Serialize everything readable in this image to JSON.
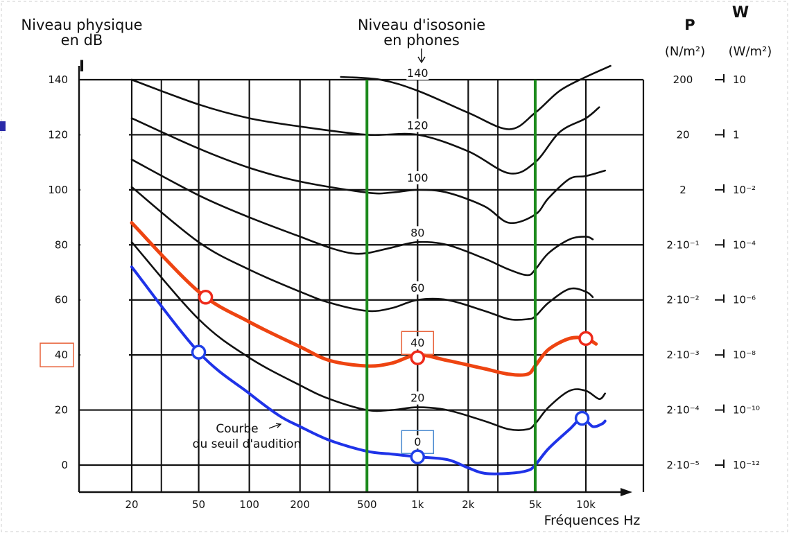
{
  "chart_data": {
    "type": "line",
    "title_left": [
      "Niveau physique",
      "en dB"
    ],
    "left_axis_symbol": "I",
    "title_center": [
      "Niveau d'isosonie",
      "en phones"
    ],
    "p_header": [
      "P",
      "(N/m²)"
    ],
    "w_header": [
      "W",
      "(W/m²)"
    ],
    "xlabel": "Fréquences Hz",
    "x_ticks": [
      "20",
      "50",
      "100",
      "200",
      "500",
      "1k",
      "2k",
      "5k",
      "10k"
    ],
    "x_tick_values": [
      20,
      50,
      100,
      200,
      500,
      1000,
      2000,
      5000,
      10000
    ],
    "x_scale": "log",
    "xlim": [
      10,
      18000
    ],
    "y_ticks": [
      0,
      20,
      40,
      60,
      80,
      100,
      120,
      140
    ],
    "ylim": [
      -10,
      140
    ],
    "p_ticks": [
      {
        "at": 140,
        "text": "200"
      },
      {
        "at": 120,
        "text": "20"
      },
      {
        "at": 100,
        "text": "2"
      },
      {
        "at": 80,
        "text": "2·10⁻¹"
      },
      {
        "at": 60,
        "text": "2·10⁻²"
      },
      {
        "at": 40,
        "text": "2·10⁻³"
      },
      {
        "at": 20,
        "text": "2·10⁻⁴"
      },
      {
        "at": 0,
        "text": "2·10⁻⁵"
      }
    ],
    "w_ticks": [
      {
        "at": 140,
        "text": "10"
      },
      {
        "at": 120,
        "text": "1"
      },
      {
        "at": 100,
        "text": "10⁻²"
      },
      {
        "at": 80,
        "text": "10⁻⁴"
      },
      {
        "at": 60,
        "text": "10⁻⁶"
      },
      {
        "at": 40,
        "text": "10⁻⁸"
      },
      {
        "at": 20,
        "text": "10⁻¹⁰"
      },
      {
        "at": 0,
        "text": "10⁻¹²"
      }
    ],
    "phon_labels": [
      {
        "text": "140",
        "freq": 1000,
        "db": 141
      },
      {
        "text": "120",
        "freq": 1000,
        "db": 122
      },
      {
        "text": "100",
        "freq": 1000,
        "db": 103
      },
      {
        "text": "80",
        "freq": 1000,
        "db": 83
      },
      {
        "text": "60",
        "freq": 1000,
        "db": 63
      },
      {
        "text": "40",
        "freq": 1000,
        "db": 43
      },
      {
        "text": "20",
        "freq": 1000,
        "db": 23
      },
      {
        "text": "0",
        "freq": 1000,
        "db": 7
      }
    ],
    "threshold_label": [
      "Courbe",
      "du seuil d'audition"
    ],
    "series": [
      {
        "points": [
          [
            350,
            141
          ],
          [
            600,
            140
          ],
          [
            1000,
            136
          ],
          [
            2000,
            128
          ],
          [
            3500,
            122
          ],
          [
            5000,
            128
          ],
          [
            7000,
            136
          ],
          [
            10000,
            141
          ],
          [
            14000,
            145
          ]
        ]
      },
      {
        "points": [
          [
            20,
            140
          ],
          [
            50,
            131
          ],
          [
            100,
            126
          ],
          [
            200,
            123
          ],
          [
            500,
            120
          ],
          [
            1000,
            120
          ],
          [
            2000,
            114
          ],
          [
            3500,
            106
          ],
          [
            5000,
            110
          ],
          [
            7000,
            121
          ],
          [
            10000,
            126
          ],
          [
            12000,
            130
          ]
        ]
      },
      {
        "points": [
          [
            20,
            126
          ],
          [
            50,
            115
          ],
          [
            100,
            108
          ],
          [
            200,
            103
          ],
          [
            500,
            99
          ],
          [
            700,
            99
          ],
          [
            1000,
            100
          ],
          [
            1500,
            99
          ],
          [
            2500,
            94
          ],
          [
            3500,
            88
          ],
          [
            5000,
            91
          ],
          [
            6000,
            97
          ],
          [
            8000,
            104
          ],
          [
            10000,
            105
          ],
          [
            13000,
            107
          ]
        ]
      },
      {
        "points": [
          [
            20,
            111
          ],
          [
            50,
            98
          ],
          [
            100,
            90
          ],
          [
            200,
            83
          ],
          [
            300,
            79
          ],
          [
            400,
            77
          ],
          [
            500,
            77
          ],
          [
            700,
            79
          ],
          [
            1000,
            81
          ],
          [
            1500,
            80
          ],
          [
            2500,
            75
          ],
          [
            3500,
            71
          ],
          [
            4500,
            69
          ],
          [
            5000,
            71
          ],
          [
            6000,
            77
          ],
          [
            8000,
            82
          ],
          [
            10000,
            83
          ],
          [
            11000,
            82
          ]
        ]
      },
      {
        "points": [
          [
            20,
            101
          ],
          [
            50,
            81
          ],
          [
            100,
            71
          ],
          [
            200,
            63
          ],
          [
            300,
            59
          ],
          [
            500,
            56
          ],
          [
            700,
            57
          ],
          [
            1000,
            60
          ],
          [
            1500,
            60
          ],
          [
            2500,
            56
          ],
          [
            3500,
            53
          ],
          [
            4500,
            53
          ],
          [
            5000,
            54
          ],
          [
            6000,
            59
          ],
          [
            8000,
            64
          ],
          [
            10000,
            63
          ],
          [
            11000,
            61
          ]
        ]
      },
      {
        "points": [
          [
            20,
            88
          ],
          [
            50,
            63
          ],
          [
            100,
            52
          ],
          [
            200,
            43
          ],
          [
            300,
            38
          ],
          [
            500,
            36
          ],
          [
            700,
            37
          ],
          [
            1000,
            40
          ],
          [
            1500,
            38
          ],
          [
            2500,
            35
          ],
          [
            3500,
            33
          ],
          [
            4500,
            33
          ],
          [
            5000,
            36
          ],
          [
            6000,
            42
          ],
          [
            8000,
            46
          ],
          [
            10000,
            46
          ],
          [
            11500,
            44
          ]
        ],
        "color": "#ee4411",
        "width": 5
      },
      {
        "points": [
          [
            20,
            81
          ],
          [
            50,
            53
          ],
          [
            100,
            39
          ],
          [
            200,
            29
          ],
          [
            300,
            24
          ],
          [
            500,
            20
          ],
          [
            700,
            20
          ],
          [
            1000,
            21
          ],
          [
            1500,
            20
          ],
          [
            2500,
            16
          ],
          [
            3500,
            13
          ],
          [
            4500,
            13
          ],
          [
            5000,
            15
          ],
          [
            6000,
            21
          ],
          [
            8000,
            27
          ],
          [
            10000,
            27
          ],
          [
            12000,
            24
          ],
          [
            13000,
            26
          ]
        ]
      },
      {
        "points": [
          [
            20,
            72
          ],
          [
            50,
            41
          ],
          [
            100,
            26
          ],
          [
            150,
            18
          ],
          [
            200,
            14
          ],
          [
            300,
            9
          ],
          [
            500,
            5
          ],
          [
            700,
            4
          ],
          [
            1000,
            3
          ],
          [
            1500,
            2
          ],
          [
            2000,
            -1
          ],
          [
            2500,
            -3
          ],
          [
            3500,
            -3
          ],
          [
            4500,
            -2
          ],
          [
            5000,
            0
          ],
          [
            6000,
            6
          ],
          [
            8000,
            13
          ],
          [
            9500,
            17
          ],
          [
            11000,
            14
          ],
          [
            12500,
            15
          ],
          [
            13000,
            16
          ]
        ],
        "color": "#1f33e8",
        "width": 4
      }
    ],
    "markers": [
      {
        "freq": 55,
        "db": 61,
        "color": "#ee2a1a"
      },
      {
        "freq": 1000,
        "db": 39,
        "color": "#ee2a1a"
      },
      {
        "freq": 10000,
        "db": 46,
        "color": "#ee2a1a"
      },
      {
        "freq": 50,
        "db": 41,
        "color": "#2040e8"
      },
      {
        "freq": 1000,
        "db": 3,
        "color": "#2040e8"
      },
      {
        "freq": 9500,
        "db": 17,
        "color": "#2040e8"
      }
    ],
    "vertical_lines": [
      {
        "freq": 500,
        "color": "#1c8a1c"
      },
      {
        "freq": 5000,
        "color": "#1c8a1c"
      }
    ],
    "highlight_boxes": [
      {
        "target": "y-tick",
        "value": 40,
        "color": "#e8623a"
      },
      {
        "target": "phon-label",
        "value": "40",
        "color": "#e8623a"
      },
      {
        "target": "phon-label",
        "value": "0",
        "color": "#4a8ad0"
      }
    ]
  }
}
